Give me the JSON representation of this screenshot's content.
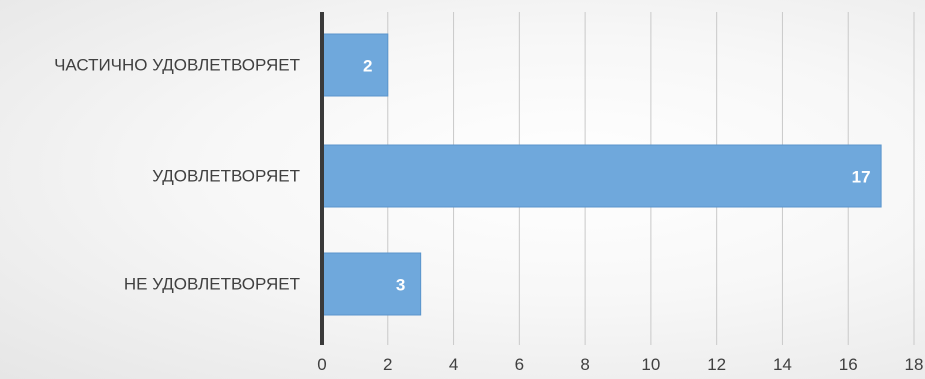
{
  "chart_data": {
    "type": "bar",
    "orientation": "horizontal",
    "categories": [
      "ЧАСТИЧНО УДОВЛЕТВОРЯЕТ",
      "УДОВЛЕТВОРЯЕТ",
      "НЕ УДОВЛЕТВОРЯЕТ"
    ],
    "values": [
      2,
      17,
      3
    ],
    "data_labels": [
      "2",
      "17",
      "3"
    ],
    "xlim": [
      0,
      18
    ],
    "x_ticks": [
      0,
      2,
      4,
      6,
      8,
      10,
      12,
      14,
      16,
      18
    ],
    "tick_labels": [
      "0",
      "2",
      "4",
      "6",
      "8",
      "10",
      "12",
      "14",
      "16",
      "18"
    ],
    "title": "",
    "xlabel": "",
    "ylabel": "",
    "grid": "vertical",
    "legend": "none",
    "bar_color": "#6fa8dc",
    "bar_edge_color": "#5b95cc",
    "gridline_color": "#c9c9c9",
    "axis_color": "#3a3a3a",
    "label_color": "#404040"
  }
}
